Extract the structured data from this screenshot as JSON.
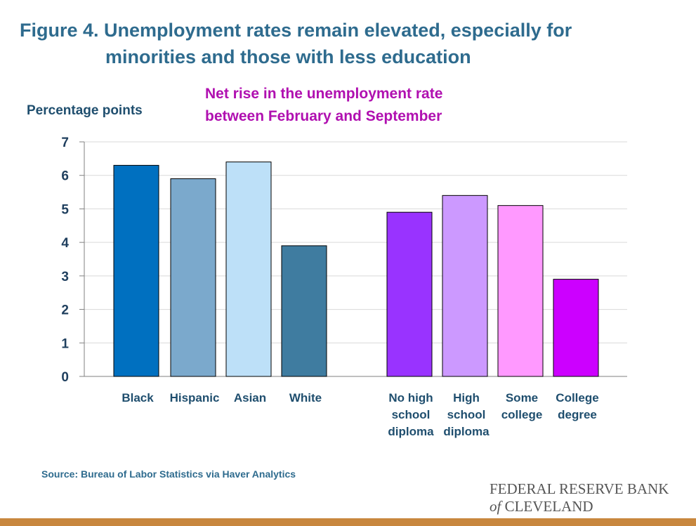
{
  "figure": {
    "title_line1": "Figure 4. Unemployment rates remain elevated, especially for",
    "title_line2": "minorities and those with less education"
  },
  "chart_data": {
    "type": "bar",
    "title": "Net rise in the unemployment rate between February and September",
    "title_lines": [
      "Net rise in the unemployment rate",
      "between February and September"
    ],
    "ylabel": "Percentage points",
    "xlabel": "",
    "ylim": [
      0,
      7
    ],
    "yticks": [
      0,
      1,
      2,
      3,
      4,
      5,
      6,
      7
    ],
    "grid": true,
    "legend": "none",
    "groups": [
      {
        "categories": [
          {
            "label_lines": [
              "Black"
            ],
            "value": 6.3,
            "color": "#0070c0"
          },
          {
            "label_lines": [
              "Hispanic"
            ],
            "value": 5.9,
            "color": "#7ba9cc"
          },
          {
            "label_lines": [
              "Asian"
            ],
            "value": 6.4,
            "color": "#bde0f8"
          },
          {
            "label_lines": [
              "White"
            ],
            "value": 3.9,
            "color": "#3f7ca0"
          }
        ]
      },
      {
        "categories": [
          {
            "label_lines": [
              "No high",
              "school",
              "diploma"
            ],
            "value": 4.9,
            "color": "#9933ff"
          },
          {
            "label_lines": [
              "High",
              "school",
              "diploma"
            ],
            "value": 5.4,
            "color": "#cc99ff"
          },
          {
            "label_lines": [
              "Some",
              "college"
            ],
            "value": 5.1,
            "color": "#ff99ff"
          },
          {
            "label_lines": [
              "College",
              "degree"
            ],
            "value": 2.9,
            "color": "#cc00ff"
          }
        ]
      }
    ]
  },
  "footer": {
    "source": "Source: Bureau of Labor Statistics via Haver Analytics",
    "logo_line1": "FEDERAL RESERVE BANK",
    "logo_of": "of",
    "logo_line2_rest": " CLEVELAND"
  },
  "colors": {
    "title": "#2e6b8e",
    "subtitle": "#b010b0",
    "bottom_bar": "#c8873e"
  }
}
